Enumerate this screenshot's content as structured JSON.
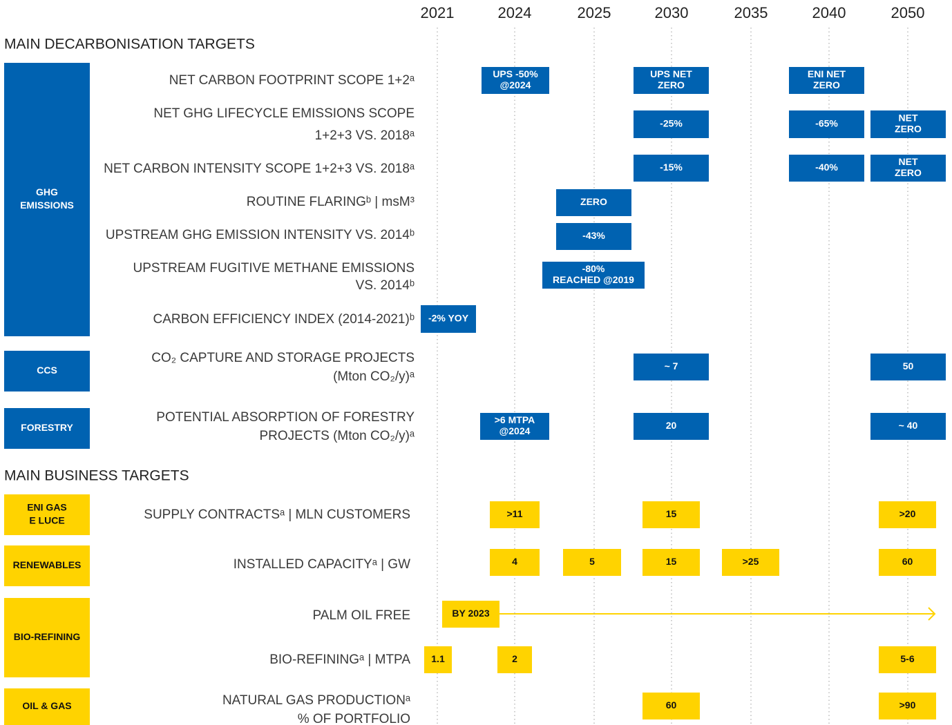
{
  "years": [
    "2021",
    "2024",
    "2025",
    "2030",
    "2035",
    "2040",
    "2050"
  ],
  "sections": [
    {
      "title": "MAIN DECARBONISATION TARGETS",
      "groups": [
        {
          "name": [
            "GHG",
            "EMISSIONS"
          ],
          "rows": [
            {
              "label": [
                "NET CARBON FOOTPRINT SCOPE 1+2ᵃ"
              ],
              "cells": [
                {
                  "text": [
                    "UPS -50%",
                    "@2024"
                  ]
                },
                {
                  "text": [
                    "UPS NET",
                    "ZERO"
                  ]
                },
                {
                  "text": [
                    "ENI NET",
                    "ZERO"
                  ]
                }
              ]
            },
            {
              "label": [
                "NET GHG LIFECYCLE EMISSIONS SCOPE",
                "1+2+3 VS. 2018ᵃ"
              ],
              "cells": [
                {
                  "text": [
                    "-25%"
                  ]
                },
                {
                  "text": [
                    "-65%"
                  ]
                },
                {
                  "text": [
                    "NET",
                    "ZERO"
                  ]
                }
              ]
            },
            {
              "label": [
                "NET CARBON INTENSITY SCOPE 1+2+3 VS. 2018ᵃ"
              ],
              "cells": [
                {
                  "text": [
                    "-15%"
                  ]
                },
                {
                  "text": [
                    "-40%"
                  ]
                },
                {
                  "text": [
                    "NET",
                    "ZERO"
                  ]
                }
              ]
            },
            {
              "label": [
                "ROUTINE FLARINGᵇ | msM³"
              ],
              "cells": [
                {
                  "text": [
                    "ZERO"
                  ]
                }
              ]
            },
            {
              "label": [
                "UPSTREAM GHG EMISSION INTENSITY VS. 2014ᵇ"
              ],
              "cells": [
                {
                  "text": [
                    "-43%"
                  ]
                }
              ]
            },
            {
              "label": [
                "UPSTREAM FUGITIVE METHANE EMISSIONS",
                "VS. 2014ᵇ"
              ],
              "cells": [
                {
                  "text": [
                    "-80%",
                    "REACHED @2019"
                  ]
                }
              ]
            },
            {
              "label": [
                "CARBON EFFICIENCY INDEX (2014-2021)ᵇ"
              ],
              "cells": [
                {
                  "text": [
                    "-2% YOY"
                  ]
                }
              ]
            }
          ]
        },
        {
          "name": [
            "CCS"
          ],
          "rows": [
            {
              "label": [
                "CO₂ CAPTURE AND STORAGE PROJECTS",
                "(Mton CO₂/y)ᵃ"
              ],
              "cells": [
                {
                  "text": [
                    "~ 7"
                  ]
                },
                {
                  "text": [
                    "50"
                  ]
                }
              ]
            }
          ]
        },
        {
          "name": [
            "FORESTRY"
          ],
          "rows": [
            {
              "label": [
                "POTENTIAL ABSORPTION OF FORESTRY",
                "PROJECTS  (Mton CO₂/y)ᵃ"
              ],
              "cells": [
                {
                  "text": [
                    ">6 MTPA",
                    "@2024"
                  ]
                },
                {
                  "text": [
                    "20"
                  ]
                },
                {
                  "text": [
                    "~ 40"
                  ]
                }
              ]
            }
          ]
        }
      ]
    },
    {
      "title": "MAIN BUSINESS TARGETS",
      "groups": [
        {
          "name": [
            "ENI GAS",
            "E LUCE"
          ],
          "rows": [
            {
              "label": [
                "SUPPLY CONTRACTSᵃ | MLN CUSTOMERS"
              ],
              "cells": [
                {
                  "text": [
                    ">11"
                  ]
                },
                {
                  "text": [
                    "15"
                  ]
                },
                {
                  "text": [
                    ">20"
                  ]
                }
              ]
            }
          ]
        },
        {
          "name": [
            "RENEWABLES"
          ],
          "rows": [
            {
              "label": [
                "INSTALLED CAPACITYᵃ | GW"
              ],
              "cells": [
                {
                  "text": [
                    "4"
                  ]
                },
                {
                  "text": [
                    "5"
                  ]
                },
                {
                  "text": [
                    "15"
                  ]
                },
                {
                  "text": [
                    ">25"
                  ]
                },
                {
                  "text": [
                    "60"
                  ]
                }
              ]
            }
          ]
        },
        {
          "name": [
            "BIO-REFINING"
          ],
          "rows": [
            {
              "label": [
                "PALM OIL FREE"
              ],
              "cells": [
                {
                  "text": [
                    "BY 2023"
                  ]
                }
              ]
            },
            {
              "label": [
                "BIO-REFININGᵃ | MTPA"
              ],
              "cells": [
                {
                  "text": [
                    "1.1"
                  ]
                },
                {
                  "text": [
                    "2"
                  ]
                },
                {
                  "text": [
                    "5-6"
                  ]
                }
              ]
            }
          ]
        },
        {
          "name": [
            "OIL & GAS"
          ],
          "rows": [
            {
              "label": [
                "NATURAL GAS PRODUCTIONᵃ",
                "% OF PORTFOLIO"
              ],
              "cells": [
                {
                  "text": [
                    "60"
                  ]
                },
                {
                  "text": [
                    ">90"
                  ]
                }
              ]
            }
          ]
        }
      ]
    }
  ]
}
